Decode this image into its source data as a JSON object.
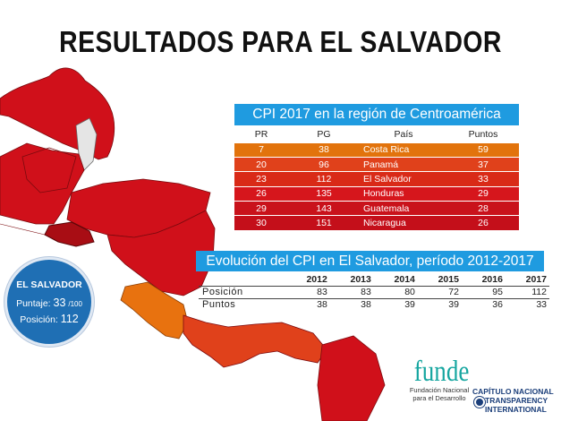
{
  "title": "RESULTADOS PARA EL SALVADOR",
  "cpi_table": {
    "title": "CPI 2017 en la región de Centroamérica",
    "headers": [
      "PR",
      "PG",
      "País",
      "Puntos"
    ],
    "rows": [
      {
        "pr": "7",
        "pg": "38",
        "pais": "Costa Rica",
        "puntos": "59",
        "color": "#e2730c"
      },
      {
        "pr": "20",
        "pg": "96",
        "pais": "Panamá",
        "puntos": "37",
        "color": "#e0411b"
      },
      {
        "pr": "23",
        "pg": "112",
        "pais": "El Salvador",
        "puntos": "33",
        "color": "#d92a17"
      },
      {
        "pr": "26",
        "pg": "135",
        "pais": "Honduras",
        "puntos": "29",
        "color": "#d6161c"
      },
      {
        "pr": "29",
        "pg": "143",
        "pais": "Guatemala",
        "puntos": "28",
        "color": "#c9121b"
      },
      {
        "pr": "30",
        "pg": "151",
        "pais": "Nicaragua",
        "puntos": "26",
        "color": "#c40f1a"
      }
    ]
  },
  "evolution": {
    "title": "Evolución del CPI en El Salvador, período 2012-2017",
    "years": [
      "2012",
      "2013",
      "2014",
      "2015",
      "2016",
      "2017"
    ],
    "rows": [
      {
        "label": "Posición",
        "values": [
          "83",
          "83",
          "80",
          "72",
          "95",
          "112"
        ]
      },
      {
        "label": "Puntos",
        "values": [
          "38",
          "38",
          "39",
          "39",
          "36",
          "33"
        ]
      }
    ]
  },
  "badge": {
    "country": "EL SALVADOR",
    "score_label": "Puntaje:",
    "score": "33",
    "score_max": "/100",
    "position_label": "Posición:",
    "position": "112"
  },
  "logos": {
    "funde_name": "funde",
    "funde_line1": "Fundación Nacional",
    "funde_line2": "para el Desarrollo",
    "ti_line1": "CAPÍTULO NACIONAL",
    "ti_line2": "TRANSPARENCY",
    "ti_line3": "INTERNATIONAL"
  },
  "colors": {
    "accent_blue": "#1f9be0",
    "badge_blue": "#1f6fb4",
    "map_red": "#d0101a",
    "map_dark_red": "#a80d14",
    "map_orange": "#e8720f",
    "map_grey": "#e5e5e5"
  }
}
